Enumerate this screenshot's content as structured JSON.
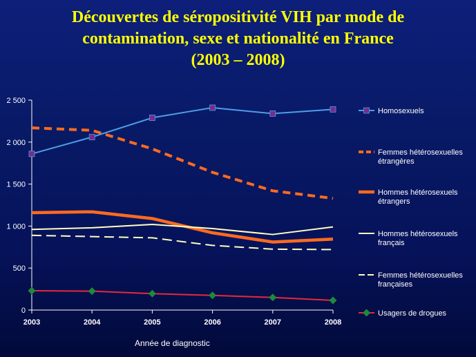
{
  "title": {
    "line1": "Découvertes de séropositivité VIH par mode de",
    "line2": "contamination, sexe et nationalité en France",
    "line3": "(2003 – 2008)"
  },
  "chart_data": {
    "type": "line",
    "x": [
      2003,
      2004,
      2005,
      2006,
      2007,
      2008
    ],
    "xlabel": "Année de diagnostic",
    "ylabel": "",
    "ylim": [
      0,
      2500
    ],
    "yticks": [
      0,
      500,
      1000,
      1500,
      2000,
      2500
    ],
    "ytick_labels": [
      "0",
      "500",
      "1 000",
      "1 500",
      "2 000",
      "2 500"
    ],
    "xtick_labels": [
      "2003",
      "2004",
      "2005",
      "2006",
      "2007",
      "2008"
    ],
    "grid": false,
    "legend_position": "right",
    "series": [
      {
        "name": "Homosexuels",
        "values": [
          1860,
          2060,
          2290,
          2410,
          2340,
          2390
        ],
        "color": "#4f9ee8",
        "style": "solid-thin",
        "marker": "square",
        "marker_color": "#7a2a8a"
      },
      {
        "name": "Femmes hétérosexuelles étrangères",
        "values": [
          2170,
          2140,
          1920,
          1640,
          1420,
          1330
        ],
        "color": "#ff6a1f",
        "style": "dashed-thick",
        "marker": "none"
      },
      {
        "name": "Hommes hétérosexuels étrangers",
        "values": [
          1160,
          1170,
          1090,
          920,
          810,
          845
        ],
        "color": "#ff6a1f",
        "style": "solid-thick",
        "marker": "none"
      },
      {
        "name": "Hommes hétérosexuels français",
        "values": [
          960,
          980,
          1020,
          970,
          900,
          990
        ],
        "color": "#ffffc0",
        "style": "solid-thin",
        "marker": "none"
      },
      {
        "name": "Femmes hétérosexuelles françaises",
        "values": [
          890,
          875,
          860,
          770,
          725,
          720
        ],
        "color": "#ffffc0",
        "style": "dashed-thin",
        "marker": "none"
      },
      {
        "name": "Usagers de drogues",
        "values": [
          230,
          225,
          195,
          175,
          150,
          115
        ],
        "color": "#e8283c",
        "style": "solid-thin",
        "marker": "diamond",
        "marker_color": "#1e8a3a"
      }
    ],
    "legend_labels": [
      [
        "Homosexuels"
      ],
      [
        "Femmes hétérosexuelles",
        "étrangères"
      ],
      [
        "Hommes hétérosexuels",
        "étrangers"
      ],
      [
        "Hommes hétérosexuels",
        "français"
      ],
      [
        "Femmes hétérosexuelles",
        "françaises"
      ],
      [
        "Usagers de drogues"
      ]
    ]
  }
}
